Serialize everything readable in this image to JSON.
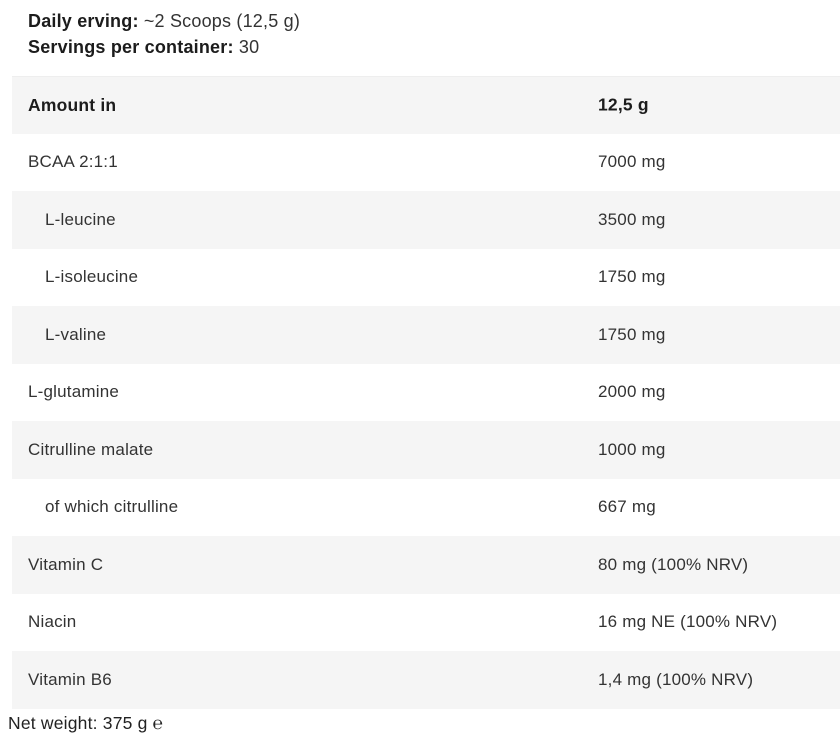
{
  "intro": {
    "daily_serving_label": "Daily erving:",
    "daily_serving_value": "~2 Scoops (12,5 g)",
    "servings_label": "Servings per container:",
    "servings_value": "30"
  },
  "table": {
    "header": {
      "name": "Amount in",
      "amount": "12,5 g"
    },
    "rows": [
      {
        "name": "BCAA 2:1:1",
        "amount": "7000 mg",
        "sub": false
      },
      {
        "name": "L-leucine",
        "amount": "3500 mg",
        "sub": true
      },
      {
        "name": "L-isoleucine",
        "amount": "1750 mg",
        "sub": true
      },
      {
        "name": "L-valine",
        "amount": "1750 mg",
        "sub": true
      },
      {
        "name": "L-glutamine",
        "amount": "2000 mg",
        "sub": false
      },
      {
        "name": "Citrulline malate",
        "amount": "1000 mg",
        "sub": false
      },
      {
        "name": "of which citrulline",
        "amount": "667 mg",
        "sub": true
      },
      {
        "name": "Vitamin C",
        "amount": "80 mg (100% NRV)",
        "sub": false
      },
      {
        "name": "Niacin",
        "amount": "16 mg NE (100% NRV)",
        "sub": false
      },
      {
        "name": "Vitamin B6",
        "amount": "1,4 mg (100% NRV)",
        "sub": false
      }
    ]
  },
  "footer": {
    "net_weight": "Net weight: 375 g ℮"
  },
  "colors": {
    "row_shade": "#f5f5f5",
    "text": "#333333",
    "text_strong": "#1c1c1c"
  }
}
